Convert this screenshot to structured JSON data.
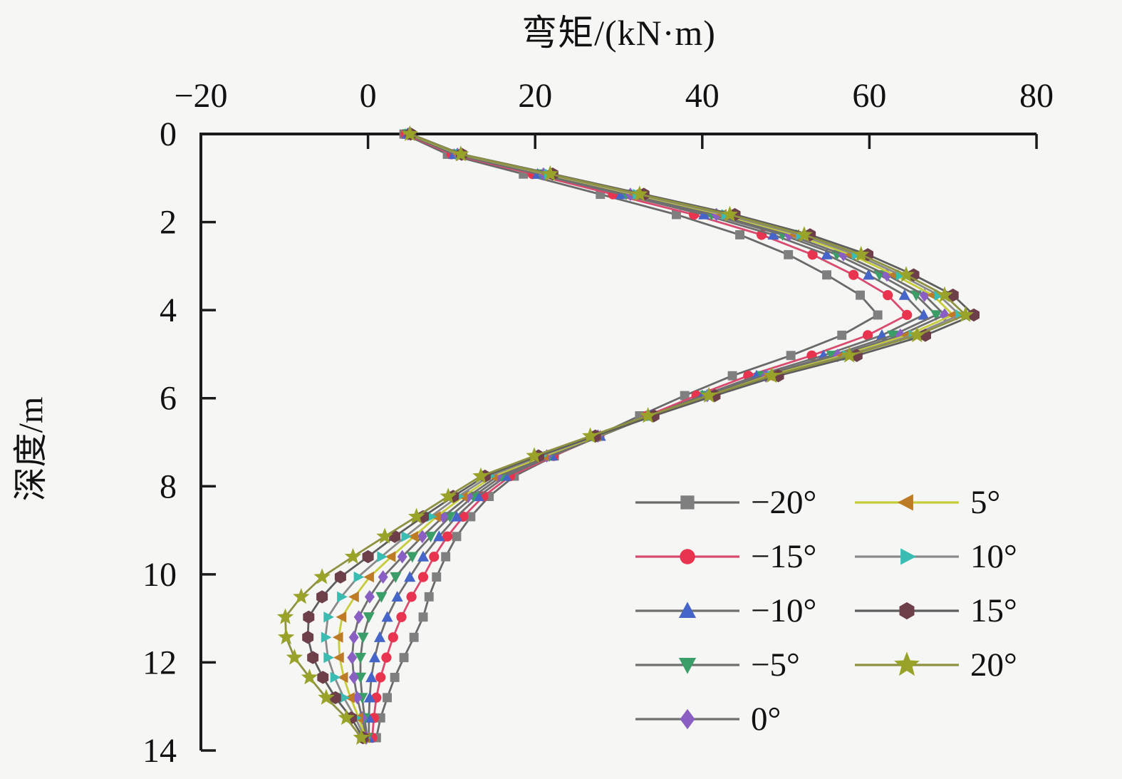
{
  "figure": {
    "background": "#f6f6f4",
    "axis_color": "#1a1a1a"
  },
  "chart_data": {
    "type": "line",
    "title": "弯矩/(kN·m)",
    "xlabel": "弯矩/(kN·m)",
    "ylabel": "深度/m",
    "xlim": [
      -20,
      80
    ],
    "ylim": [
      0,
      14
    ],
    "x_ticks": [
      "−20",
      "0",
      "20",
      "40",
      "60",
      "80"
    ],
    "x_tick_values": [
      -20,
      0,
      20,
      40,
      60,
      80
    ],
    "y_ticks": [
      "0",
      "2",
      "4",
      "6",
      "8",
      "10",
      "12",
      "14"
    ],
    "y_tick_values": [
      0,
      2,
      4,
      6,
      8,
      10,
      12,
      14
    ],
    "grid": false,
    "legend_position": "inside-lower-right",
    "depths": [
      0,
      0.46,
      0.91,
      1.37,
      1.83,
      2.29,
      2.74,
      3.2,
      3.66,
      4.11,
      4.57,
      5.03,
      5.49,
      5.94,
      6.4,
      6.86,
      7.31,
      7.77,
      8.23,
      8.69,
      9.14,
      9.6,
      10.06,
      10.51,
      10.97,
      11.43,
      11.89,
      12.34,
      12.8,
      13.26,
      13.71
    ],
    "series": [
      {
        "name": "−20°",
        "marker": "square",
        "marker_color": "#7f7f7f",
        "line_color": "#696969",
        "values": [
          4.3,
          9.5,
          18.6,
          27.8,
          36.9,
          44.5,
          50.3,
          54.9,
          58.9,
          61.0,
          56.7,
          50.6,
          43.6,
          37.9,
          32.5,
          27.3,
          22.3,
          17.5,
          14.5,
          12.3,
          10.6,
          9.3,
          8.2,
          7.3,
          6.6,
          5.5,
          4.3,
          3.2,
          2.3,
          1.5,
          1.0
        ]
      },
      {
        "name": "−15°",
        "marker": "circle",
        "marker_color": "#e8344e",
        "line_color": "#d84a6e",
        "values": [
          4.5,
          10.0,
          19.7,
          29.3,
          39.0,
          47.1,
          53.2,
          58.1,
          62.2,
          64.5,
          59.8,
          53.1,
          45.5,
          39.3,
          33.4,
          27.7,
          22.2,
          17.0,
          13.8,
          11.4,
          9.5,
          7.9,
          6.6,
          5.2,
          4.0,
          3.0,
          2.2,
          1.5,
          1.0,
          0.7,
          0.5
        ]
      },
      {
        "name": "−10°",
        "marker": "triangle-up",
        "marker_color": "#4565c8",
        "line_color": "#6f6f6f",
        "values": [
          4.7,
          10.3,
          20.3,
          30.3,
          40.2,
          48.5,
          54.9,
          59.9,
          64.2,
          66.5,
          61.5,
          54.5,
          46.5,
          40.0,
          33.8,
          27.8,
          22.0,
          16.5,
          13.2,
          10.6,
          8.5,
          6.6,
          5.0,
          3.5,
          2.3,
          1.4,
          0.8,
          0.4,
          0.2,
          0.1,
          0.1
        ]
      },
      {
        "name": "−5°",
        "marker": "triangle-down",
        "marker_color": "#3b9e68",
        "line_color": "#6f6f6f",
        "values": [
          4.8,
          10.5,
          20.7,
          30.9,
          41.1,
          49.6,
          56.1,
          61.2,
          65.6,
          68.0,
          62.8,
          55.5,
          47.2,
          40.4,
          33.9,
          27.7,
          21.7,
          16.0,
          12.6,
          9.8,
          7.5,
          5.3,
          3.3,
          1.6,
          0.1,
          -0.6,
          -0.9,
          -0.9,
          -0.7,
          -0.4,
          -0.1
        ]
      },
      {
        "name": "0°",
        "marker": "diamond",
        "marker_color": "#8a5fc4",
        "line_color": "#6f6f6f",
        "values": [
          4.8,
          10.7,
          21.0,
          31.4,
          41.7,
          50.4,
          56.9,
          62.1,
          66.6,
          69.0,
          63.7,
          56.2,
          47.6,
          40.6,
          34.0,
          27.5,
          21.4,
          15.5,
          12.0,
          9.0,
          6.5,
          4.1,
          1.8,
          0.2,
          -1.1,
          -1.7,
          -1.9,
          -1.7,
          -1.3,
          -0.7,
          -0.2
        ]
      },
      {
        "name": "5°",
        "marker": "triangle-left",
        "marker_color": "#bd7b26",
        "line_color": "#c6cc3a",
        "values": [
          4.9,
          10.9,
          21.4,
          31.9,
          42.4,
          51.1,
          57.8,
          63.0,
          67.6,
          70.0,
          64.5,
          56.8,
          48.0,
          40.9,
          34.0,
          27.4,
          21.1,
          15.0,
          11.4,
          8.2,
          5.5,
          2.8,
          0.2,
          -1.6,
          -3.1,
          -3.5,
          -3.4,
          -2.9,
          -2.1,
          -1.1,
          -0.3
        ]
      },
      {
        "name": "10°",
        "marker": "triangle-right",
        "marker_color": "#3bbcb2",
        "line_color": "#8a8a8a",
        "values": [
          5.0,
          11.0,
          21.6,
          32.2,
          42.8,
          51.7,
          58.4,
          63.7,
          68.3,
          70.8,
          65.2,
          57.3,
          48.3,
          41.0,
          33.9,
          27.2,
          20.7,
          14.5,
          10.8,
          7.5,
          4.5,
          1.6,
          -1.2,
          -3.2,
          -4.8,
          -5.1,
          -4.8,
          -4.0,
          -2.9,
          -1.5,
          -0.4
        ]
      },
      {
        "name": "15°",
        "marker": "hexagon",
        "marker_color": "#6c3f49",
        "line_color": "#5e5e5e",
        "values": [
          5.1,
          11.2,
          22.1,
          33.0,
          43.9,
          52.9,
          59.8,
          65.3,
          70.0,
          72.5,
          66.7,
          58.5,
          49.1,
          41.5,
          34.2,
          27.2,
          20.4,
          14.0,
          10.2,
          6.6,
          3.2,
          0.0,
          -3.3,
          -5.5,
          -7.1,
          -7.2,
          -6.6,
          -5.4,
          -3.9,
          -2.0,
          -0.6
        ]
      },
      {
        "name": "20°",
        "marker": "star",
        "marker_color": "#99a32a",
        "line_color": "#8d9141",
        "values": [
          5.0,
          11.1,
          21.8,
          32.5,
          43.3,
          52.2,
          59.0,
          64.4,
          69.0,
          71.5,
          65.7,
          57.6,
          48.3,
          40.8,
          33.5,
          26.6,
          19.9,
          13.5,
          9.6,
          5.8,
          2.0,
          -1.8,
          -5.5,
          -8.0,
          -9.9,
          -9.8,
          -8.8,
          -7.0,
          -5.0,
          -2.6,
          -0.8
        ]
      }
    ]
  }
}
